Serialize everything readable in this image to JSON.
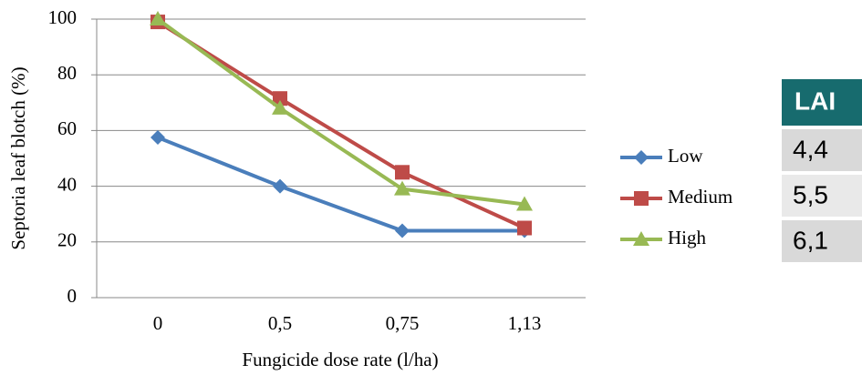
{
  "chart_data": {
    "type": "line",
    "xlabel": "Fungicide dose rate (l/ha)",
    "ylabel": "Septoria leaf blotch (%)",
    "categories": [
      "0",
      "0,5",
      "0,75",
      "1,13"
    ],
    "series": [
      {
        "name": "Low",
        "color": "#4a7ebb",
        "marker": "diamond",
        "values": [
          57.5,
          40,
          24,
          24
        ]
      },
      {
        "name": "Medium",
        "color": "#be4b48",
        "marker": "square",
        "values": [
          99,
          71.5,
          45,
          25
        ]
      },
      {
        "name": "High",
        "color": "#98b954",
        "marker": "triangle",
        "values": [
          100,
          68,
          39,
          33.5
        ]
      }
    ],
    "ylim": [
      0,
      100
    ],
    "yticks": [
      0,
      20,
      40,
      60,
      80,
      100
    ],
    "grid": true,
    "legend": "right",
    "table": {
      "header": "LAI",
      "rows": [
        "4,4",
        "5,5",
        "6,1"
      ]
    }
  }
}
